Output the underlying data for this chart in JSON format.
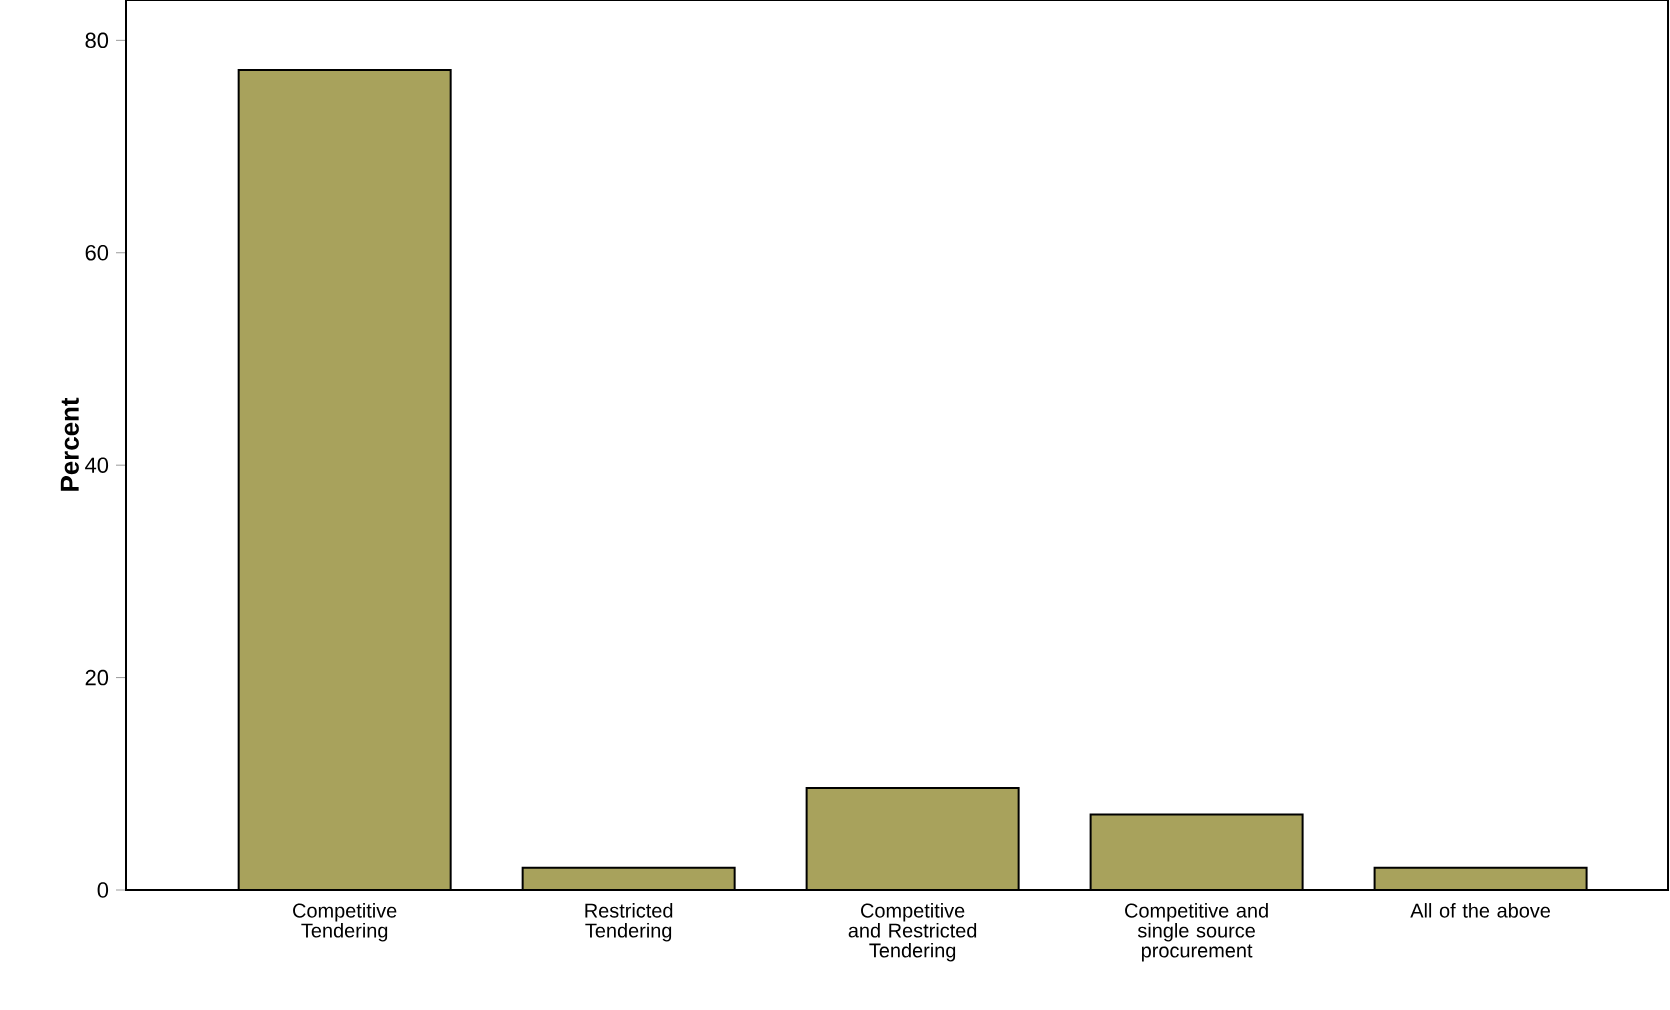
{
  "chart_data": {
    "type": "bar",
    "ylabel": "Percent",
    "categories": [
      "Competitive Tendering",
      "Restricted Tendering",
      "Competitive and Restricted Tendering",
      "Competitive and single source procurement",
      "All of the above"
    ],
    "values": [
      77.2,
      2.1,
      9.6,
      7.1,
      2.1
    ],
    "color": "#a8a25c",
    "ylim": [
      0,
      83.8
    ],
    "yticks": [
      0,
      20,
      40,
      60,
      80
    ],
    "grid": false
  }
}
